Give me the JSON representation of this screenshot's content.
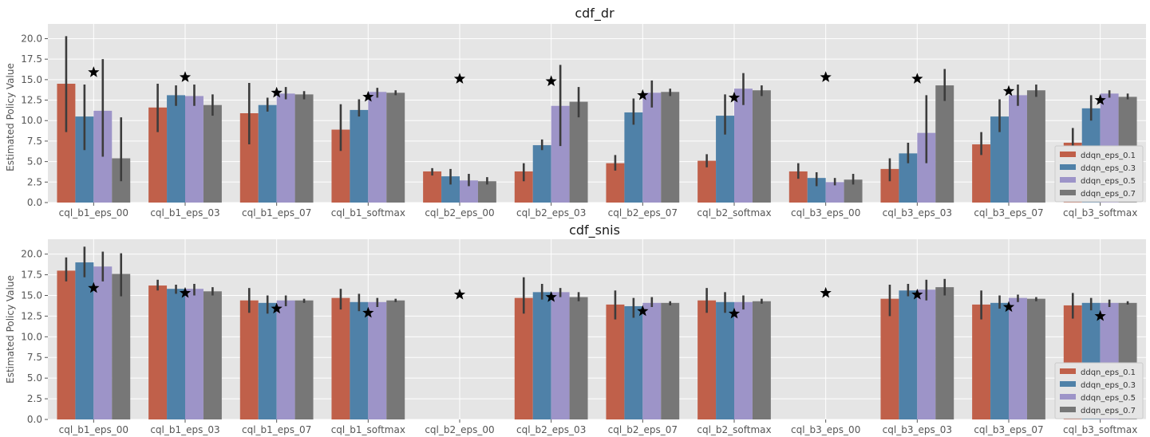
{
  "chart_data": [
    {
      "type": "bar",
      "title": "cdf_dr",
      "xlabel": "",
      "ylabel": "Estimated Policy Value",
      "ylim": [
        0,
        21.8
      ],
      "yticks": [
        0.0,
        2.5,
        5.0,
        7.5,
        10.0,
        12.5,
        15.0,
        17.5,
        20.0
      ],
      "ytick_labels": [
        "0.0",
        "2.5",
        "5.0",
        "7.5",
        "10.0",
        "12.5",
        "15.0",
        "17.5",
        "20.0"
      ],
      "grid": true,
      "legend": "center-right",
      "categories": [
        "cql_b1_eps_00",
        "cql_b1_eps_03",
        "cql_b1_eps_07",
        "cql_b1_softmax",
        "cql_b2_eps_00",
        "cql_b2_eps_03",
        "cql_b2_eps_07",
        "cql_b2_softmax",
        "cql_b3_eps_00",
        "cql_b3_eps_03",
        "cql_b3_eps_07",
        "cql_b3_softmax"
      ],
      "series": [
        {
          "name": "ddqn_eps_0.1",
          "color": "#c0604a",
          "values": [
            14.5,
            11.6,
            10.9,
            8.9,
            3.8,
            3.8,
            4.8,
            5.1,
            3.8,
            4.1,
            7.1,
            7.3
          ],
          "err_low": [
            8.6,
            8.6,
            7.1,
            6.3,
            3.3,
            2.6,
            3.9,
            4.3,
            2.9,
            2.6,
            5.8,
            5.7
          ],
          "err_high": [
            20.3,
            14.5,
            14.6,
            12.0,
            4.2,
            4.8,
            5.8,
            5.9,
            4.8,
            5.4,
            8.6,
            9.1
          ]
        },
        {
          "name": "ddqn_eps_0.3",
          "color": "#4f81a8",
          "values": [
            10.5,
            13.1,
            11.9,
            11.3,
            3.2,
            7.0,
            11.0,
            10.6,
            3.0,
            6.0,
            10.5,
            11.5
          ],
          "err_low": [
            6.4,
            11.8,
            11.1,
            10.5,
            2.2,
            6.4,
            9.5,
            8.3,
            2.0,
            4.8,
            8.6,
            10.0
          ],
          "err_high": [
            14.4,
            14.3,
            12.8,
            12.6,
            4.1,
            7.7,
            12.7,
            13.2,
            3.7,
            7.3,
            12.6,
            13.1
          ]
        },
        {
          "name": "ddqn_eps_0.5",
          "color": "#9d94c8",
          "values": [
            11.2,
            13.0,
            13.3,
            13.5,
            2.7,
            11.8,
            13.4,
            13.9,
            2.5,
            8.5,
            13.1,
            13.3
          ],
          "err_low": [
            5.6,
            11.8,
            12.6,
            12.8,
            2.0,
            6.9,
            11.6,
            11.9,
            2.1,
            4.8,
            11.8,
            12.8
          ],
          "err_high": [
            17.5,
            14.4,
            14.1,
            14.0,
            3.5,
            16.8,
            14.9,
            15.8,
            3.0,
            13.1,
            14.4,
            13.7
          ]
        },
        {
          "name": "ddqn_eps_0.7",
          "color": "#777777",
          "values": [
            5.4,
            11.9,
            13.2,
            13.4,
            2.6,
            12.3,
            13.5,
            13.7,
            2.8,
            14.3,
            13.7,
            12.9
          ],
          "err_low": [
            2.6,
            10.6,
            12.6,
            13.1,
            2.2,
            10.4,
            13.0,
            13.0,
            2.2,
            12.4,
            12.9,
            12.6
          ],
          "err_high": [
            10.4,
            13.2,
            13.6,
            13.7,
            3.1,
            14.1,
            13.9,
            14.3,
            3.5,
            16.3,
            14.4,
            13.3
          ]
        }
      ],
      "stars": [
        15.9,
        15.3,
        13.4,
        12.9,
        15.1,
        14.8,
        13.1,
        12.8,
        15.3,
        15.1,
        13.6,
        12.5
      ]
    },
    {
      "type": "bar",
      "title": "cdf_snis",
      "xlabel": "",
      "ylabel": "Estimated Policy Value",
      "ylim": [
        0,
        21.8
      ],
      "yticks": [
        0.0,
        2.5,
        5.0,
        7.5,
        10.0,
        12.5,
        15.0,
        17.5,
        20.0
      ],
      "ytick_labels": [
        "0.0",
        "2.5",
        "5.0",
        "7.5",
        "10.0",
        "12.5",
        "15.0",
        "17.5",
        "20.0"
      ],
      "grid": true,
      "legend": "lower-right",
      "categories": [
        "cql_b1_eps_00",
        "cql_b1_eps_03",
        "cql_b1_eps_07",
        "cql_b1_softmax",
        "cql_b2_eps_00",
        "cql_b2_eps_03",
        "cql_b2_eps_07",
        "cql_b2_softmax",
        "cql_b3_eps_00",
        "cql_b3_eps_03",
        "cql_b3_eps_07",
        "cql_b3_softmax"
      ],
      "series": [
        {
          "name": "ddqn_eps_0.1",
          "color": "#c0604a",
          "values": [
            18.0,
            16.2,
            14.4,
            14.7,
            null,
            14.7,
            13.9,
            14.4,
            null,
            14.6,
            13.9,
            13.8
          ],
          "err_low": [
            16.7,
            15.6,
            12.9,
            13.3,
            null,
            12.8,
            12.1,
            12.9,
            null,
            12.5,
            12.1,
            12.2
          ],
          "err_high": [
            19.6,
            16.9,
            15.9,
            15.8,
            null,
            17.2,
            15.6,
            15.9,
            null,
            16.3,
            15.6,
            15.3
          ]
        },
        {
          "name": "ddqn_eps_0.3",
          "color": "#4f81a8",
          "values": [
            19.0,
            15.8,
            14.1,
            14.2,
            null,
            15.4,
            13.7,
            14.2,
            null,
            15.6,
            14.1,
            14.1
          ],
          "err_low": [
            17.2,
            15.2,
            12.8,
            13.1,
            null,
            14.5,
            12.3,
            12.9,
            null,
            14.9,
            13.4,
            13.2
          ],
          "err_high": [
            20.9,
            16.3,
            15.0,
            15.2,
            null,
            16.4,
            14.7,
            15.4,
            null,
            16.4,
            15.0,
            14.7
          ]
        },
        {
          "name": "ddqn_eps_0.5",
          "color": "#9d94c8",
          "values": [
            18.5,
            15.8,
            14.4,
            14.2,
            null,
            15.4,
            14.1,
            14.2,
            null,
            15.7,
            14.7,
            14.1
          ],
          "err_low": [
            16.7,
            15.0,
            13.7,
            13.6,
            null,
            14.8,
            13.6,
            13.3,
            null,
            14.4,
            14.2,
            13.6
          ],
          "err_high": [
            20.3,
            16.4,
            15.0,
            14.7,
            null,
            15.9,
            14.8,
            15.0,
            null,
            16.9,
            15.1,
            14.5
          ]
        },
        {
          "name": "ddqn_eps_0.7",
          "color": "#777777",
          "values": [
            17.6,
            15.5,
            14.4,
            14.4,
            null,
            14.8,
            14.1,
            14.3,
            null,
            16.0,
            14.6,
            14.1
          ],
          "err_low": [
            14.9,
            15.0,
            14.1,
            14.2,
            null,
            14.3,
            13.8,
            14.0,
            null,
            15.0,
            14.3,
            13.9
          ],
          "err_high": [
            20.1,
            16.0,
            14.6,
            14.6,
            null,
            15.4,
            14.3,
            14.6,
            null,
            17.0,
            14.8,
            14.3
          ]
        }
      ],
      "stars": [
        15.9,
        15.3,
        13.4,
        12.9,
        15.1,
        14.8,
        13.1,
        12.8,
        15.3,
        15.1,
        13.6,
        12.5
      ]
    }
  ]
}
